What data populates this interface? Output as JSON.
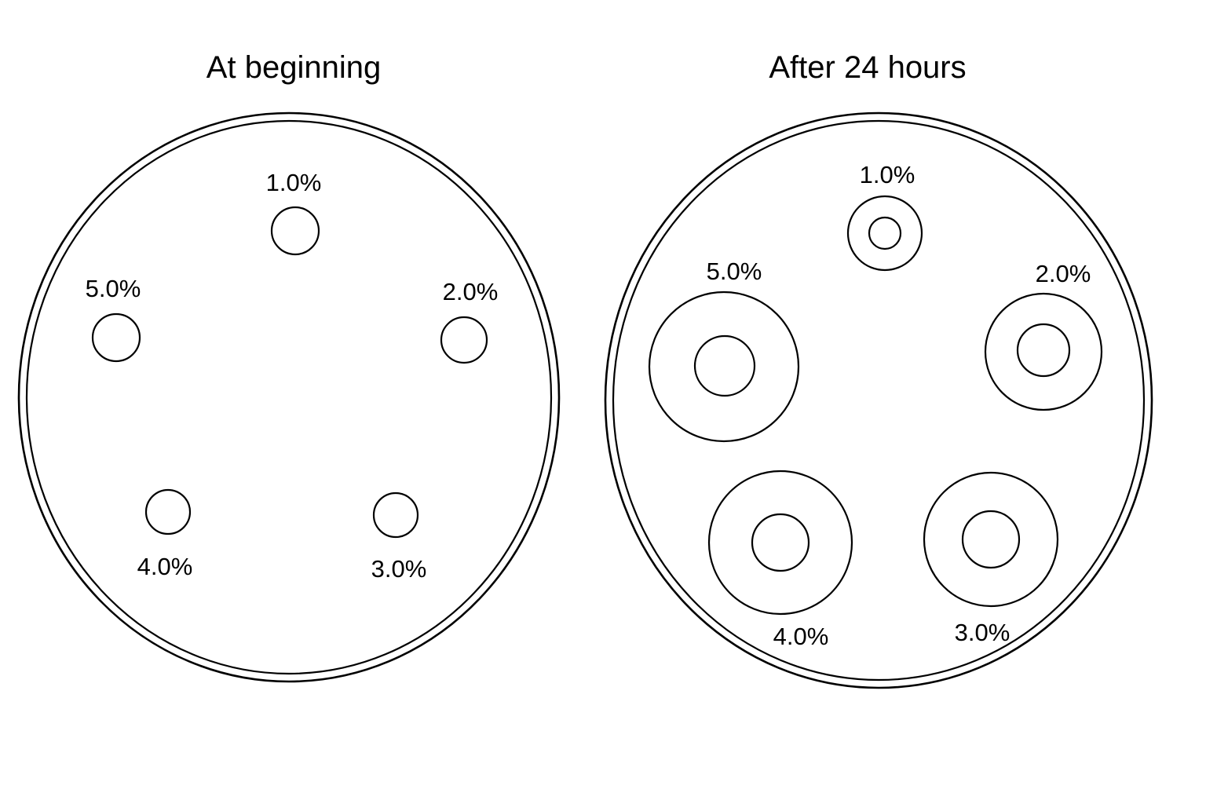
{
  "panels": {
    "before": {
      "title": "At beginning",
      "wells": {
        "w1": {
          "label": "1.0%"
        },
        "w2": {
          "label": "2.0%"
        },
        "w3": {
          "label": "3.0%"
        },
        "w4": {
          "label": "4.0%"
        },
        "w5": {
          "label": "5.0%"
        }
      }
    },
    "after": {
      "title": "After 24 hours",
      "wells": {
        "w1": {
          "label": "1.0%"
        },
        "w2": {
          "label": "2.0%"
        },
        "w3": {
          "label": "3.0%"
        },
        "w4": {
          "label": "4.0%"
        },
        "w5": {
          "label": "5.0%"
        }
      }
    }
  },
  "colors": {
    "stroke": "#000000",
    "background": "#ffffff"
  }
}
